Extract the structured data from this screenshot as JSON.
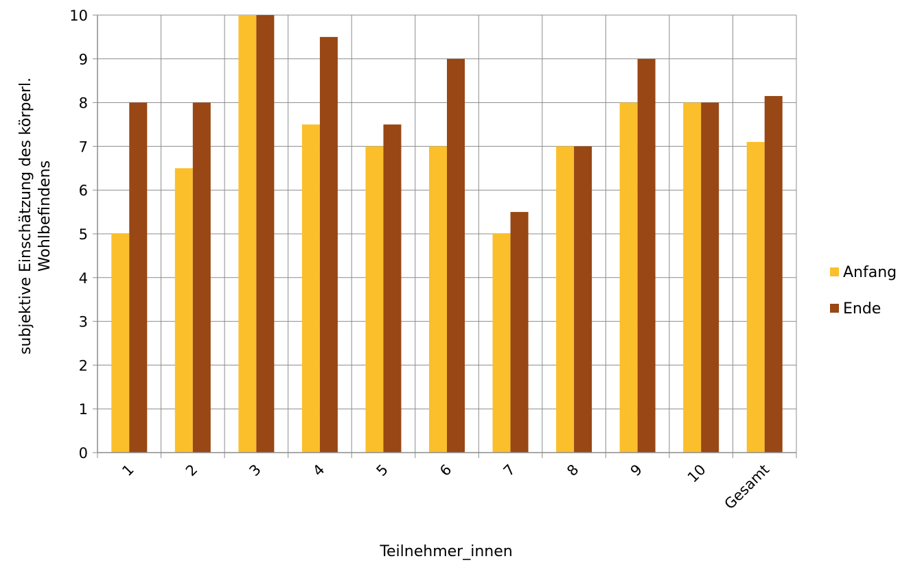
{
  "chart_data": {
    "type": "bar",
    "categories": [
      "1",
      "2",
      "3",
      "4",
      "5",
      "6",
      "7",
      "8",
      "9",
      "10",
      "Gesamt"
    ],
    "series": [
      {
        "name": "Anfang",
        "color": "#FBBF2C",
        "values": [
          5,
          6.5,
          10,
          7.5,
          7,
          7,
          5,
          7,
          8,
          8,
          7.1
        ]
      },
      {
        "name": "Ende",
        "color": "#984715",
        "values": [
          8,
          8,
          10,
          9.5,
          7.5,
          9,
          5.5,
          7,
          9,
          8,
          8.15
        ]
      }
    ],
    "xlabel": "Teilnehmer_innen",
    "ylabel_lines": [
      "subjektive Einschätzung des körperl.",
      "Wohlbefindens"
    ],
    "ylim": [
      0,
      10
    ],
    "yticks": [
      0,
      1,
      2,
      3,
      4,
      5,
      6,
      7,
      8,
      9,
      10
    ],
    "grid": true,
    "legend_position": "right"
  }
}
